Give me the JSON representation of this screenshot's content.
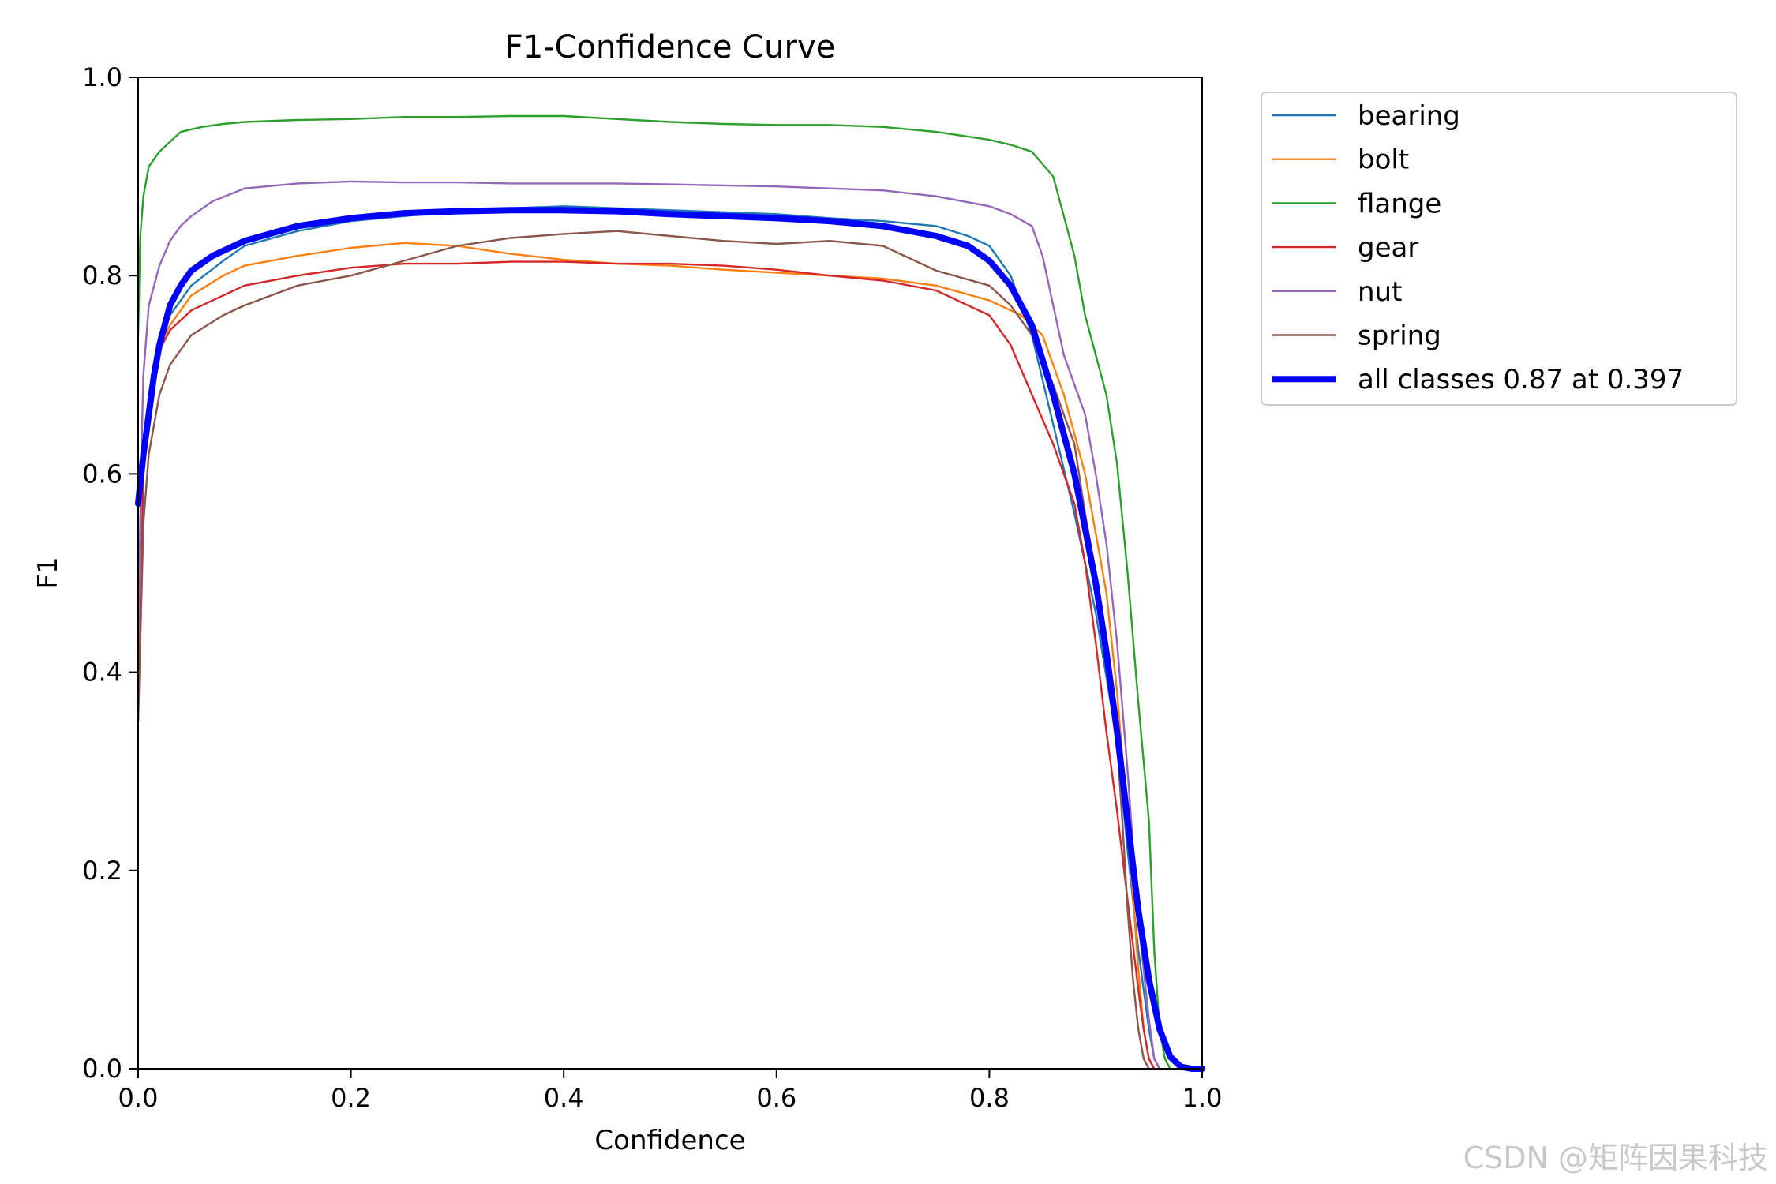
{
  "chart_data": {
    "type": "line",
    "title": "F1-Confidence Curve",
    "xlabel": "Confidence",
    "ylabel": "F1",
    "xlim": [
      0.0,
      1.0
    ],
    "ylim": [
      0.0,
      1.0
    ],
    "x_ticks": [
      0.0,
      0.2,
      0.4,
      0.6,
      0.8,
      1.0
    ],
    "x_tick_labels": [
      "0.0",
      "0.2",
      "0.4",
      "0.6",
      "0.8",
      "1.0"
    ],
    "y_ticks": [
      0.0,
      0.2,
      0.4,
      0.6,
      0.8,
      1.0
    ],
    "y_tick_labels": [
      "0.0",
      "0.2",
      "0.4",
      "0.6",
      "0.8",
      "1.0"
    ],
    "grid": false,
    "legend_position": "outside-top-right",
    "series": [
      {
        "name": "bearing",
        "color": "#1f77b4",
        "width": "thin",
        "x": [
          0.0,
          0.005,
          0.01,
          0.02,
          0.03,
          0.05,
          0.08,
          0.1,
          0.15,
          0.2,
          0.25,
          0.3,
          0.35,
          0.4,
          0.45,
          0.5,
          0.55,
          0.6,
          0.65,
          0.7,
          0.75,
          0.78,
          0.8,
          0.82,
          0.84,
          0.86,
          0.88,
          0.9,
          0.92,
          0.93,
          0.94,
          0.95,
          0.955,
          0.96
        ],
        "y": [
          0.37,
          0.62,
          0.68,
          0.74,
          0.76,
          0.79,
          0.815,
          0.83,
          0.845,
          0.855,
          0.86,
          0.865,
          0.868,
          0.87,
          0.868,
          0.866,
          0.864,
          0.862,
          0.858,
          0.855,
          0.85,
          0.84,
          0.83,
          0.8,
          0.74,
          0.65,
          0.56,
          0.46,
          0.33,
          0.22,
          0.12,
          0.04,
          0.01,
          0.0
        ]
      },
      {
        "name": "bolt",
        "color": "#ff7f0e",
        "width": "thin",
        "x": [
          0.0,
          0.005,
          0.01,
          0.02,
          0.03,
          0.05,
          0.08,
          0.1,
          0.15,
          0.2,
          0.25,
          0.3,
          0.35,
          0.4,
          0.45,
          0.5,
          0.55,
          0.6,
          0.65,
          0.7,
          0.75,
          0.8,
          0.83,
          0.85,
          0.87,
          0.89,
          0.91,
          0.92,
          0.93,
          0.94,
          0.945,
          0.95,
          0.955
        ],
        "y": [
          0.35,
          0.62,
          0.68,
          0.73,
          0.75,
          0.78,
          0.8,
          0.81,
          0.82,
          0.828,
          0.833,
          0.83,
          0.822,
          0.816,
          0.812,
          0.81,
          0.806,
          0.803,
          0.8,
          0.797,
          0.79,
          0.775,
          0.76,
          0.74,
          0.68,
          0.6,
          0.48,
          0.38,
          0.25,
          0.1,
          0.04,
          0.01,
          0.0
        ]
      },
      {
        "name": "flange",
        "color": "#2ca02c",
        "width": "thin",
        "x": [
          0.0,
          0.002,
          0.005,
          0.01,
          0.02,
          0.03,
          0.04,
          0.06,
          0.08,
          0.1,
          0.15,
          0.2,
          0.25,
          0.3,
          0.35,
          0.4,
          0.45,
          0.5,
          0.55,
          0.6,
          0.65,
          0.7,
          0.75,
          0.8,
          0.82,
          0.84,
          0.86,
          0.87,
          0.88,
          0.89,
          0.9,
          0.91,
          0.92,
          0.93,
          0.94,
          0.95,
          0.955,
          0.96,
          0.965,
          0.97
        ],
        "y": [
          0.74,
          0.84,
          0.88,
          0.91,
          0.925,
          0.935,
          0.945,
          0.95,
          0.953,
          0.955,
          0.957,
          0.958,
          0.96,
          0.96,
          0.961,
          0.961,
          0.958,
          0.955,
          0.953,
          0.952,
          0.952,
          0.95,
          0.945,
          0.937,
          0.932,
          0.925,
          0.9,
          0.86,
          0.82,
          0.76,
          0.72,
          0.68,
          0.61,
          0.5,
          0.37,
          0.25,
          0.12,
          0.04,
          0.01,
          0.0
        ]
      },
      {
        "name": "gear",
        "color": "#d62728",
        "width": "thin",
        "x": [
          0.0,
          0.005,
          0.01,
          0.02,
          0.03,
          0.05,
          0.08,
          0.1,
          0.15,
          0.2,
          0.25,
          0.3,
          0.35,
          0.4,
          0.45,
          0.5,
          0.55,
          0.6,
          0.65,
          0.7,
          0.75,
          0.78,
          0.8,
          0.82,
          0.84,
          0.86,
          0.88,
          0.89,
          0.9,
          0.91,
          0.92,
          0.93,
          0.94,
          0.945,
          0.95,
          0.955
        ],
        "y": [
          0.36,
          0.6,
          0.68,
          0.725,
          0.745,
          0.765,
          0.78,
          0.79,
          0.8,
          0.808,
          0.812,
          0.812,
          0.814,
          0.814,
          0.812,
          0.812,
          0.81,
          0.806,
          0.8,
          0.795,
          0.785,
          0.77,
          0.76,
          0.73,
          0.68,
          0.63,
          0.57,
          0.51,
          0.43,
          0.34,
          0.26,
          0.17,
          0.08,
          0.04,
          0.01,
          0.0
        ]
      },
      {
        "name": "nut",
        "color": "#9467bd",
        "width": "thin",
        "x": [
          0.0,
          0.003,
          0.005,
          0.01,
          0.02,
          0.03,
          0.04,
          0.05,
          0.07,
          0.1,
          0.15,
          0.2,
          0.25,
          0.3,
          0.35,
          0.4,
          0.45,
          0.5,
          0.55,
          0.6,
          0.65,
          0.7,
          0.75,
          0.8,
          0.82,
          0.84,
          0.85,
          0.86,
          0.87,
          0.88,
          0.89,
          0.9,
          0.91,
          0.92,
          0.93,
          0.94,
          0.95,
          0.955,
          0.96
        ],
        "y": [
          0.42,
          0.62,
          0.7,
          0.77,
          0.81,
          0.835,
          0.85,
          0.86,
          0.875,
          0.888,
          0.893,
          0.895,
          0.894,
          0.894,
          0.893,
          0.893,
          0.893,
          0.892,
          0.891,
          0.89,
          0.888,
          0.886,
          0.88,
          0.87,
          0.862,
          0.85,
          0.82,
          0.77,
          0.72,
          0.69,
          0.66,
          0.6,
          0.53,
          0.43,
          0.3,
          0.15,
          0.05,
          0.01,
          0.0
        ]
      },
      {
        "name": "spring",
        "color": "#8c564b",
        "width": "thin",
        "x": [
          0.0,
          0.005,
          0.01,
          0.02,
          0.03,
          0.05,
          0.08,
          0.1,
          0.15,
          0.2,
          0.25,
          0.3,
          0.35,
          0.4,
          0.45,
          0.5,
          0.55,
          0.6,
          0.65,
          0.7,
          0.72,
          0.75,
          0.8,
          0.82,
          0.84,
          0.86,
          0.88,
          0.89,
          0.9,
          0.91,
          0.92,
          0.925,
          0.93,
          0.935,
          0.94,
          0.945,
          0.95
        ],
        "y": [
          0.35,
          0.55,
          0.62,
          0.68,
          0.71,
          0.74,
          0.76,
          0.77,
          0.79,
          0.8,
          0.815,
          0.83,
          0.838,
          0.842,
          0.845,
          0.84,
          0.835,
          0.832,
          0.835,
          0.83,
          0.82,
          0.805,
          0.79,
          0.77,
          0.74,
          0.69,
          0.63,
          0.56,
          0.5,
          0.42,
          0.33,
          0.25,
          0.16,
          0.09,
          0.04,
          0.01,
          0.0
        ]
      },
      {
        "name": "all classes 0.87 at 0.397",
        "color": "#0000ff",
        "width": "thick",
        "x": [
          0.0,
          0.003,
          0.005,
          0.01,
          0.015,
          0.02,
          0.025,
          0.03,
          0.04,
          0.05,
          0.07,
          0.1,
          0.15,
          0.2,
          0.25,
          0.3,
          0.35,
          0.397,
          0.45,
          0.5,
          0.55,
          0.6,
          0.65,
          0.7,
          0.75,
          0.78,
          0.8,
          0.82,
          0.84,
          0.86,
          0.88,
          0.9,
          0.91,
          0.92,
          0.93,
          0.94,
          0.95,
          0.96,
          0.97,
          0.98,
          0.99,
          1.0
        ],
        "y": [
          0.57,
          0.6,
          0.62,
          0.66,
          0.7,
          0.73,
          0.75,
          0.77,
          0.79,
          0.805,
          0.82,
          0.835,
          0.85,
          0.858,
          0.863,
          0.865,
          0.866,
          0.866,
          0.865,
          0.862,
          0.86,
          0.858,
          0.855,
          0.85,
          0.84,
          0.83,
          0.815,
          0.79,
          0.75,
          0.68,
          0.6,
          0.49,
          0.42,
          0.34,
          0.25,
          0.16,
          0.09,
          0.04,
          0.012,
          0.002,
          0.0,
          0.0
        ]
      }
    ]
  },
  "watermark": {
    "text": "CSDN @矩阵因果科技",
    "color": "#c8c8c8"
  }
}
